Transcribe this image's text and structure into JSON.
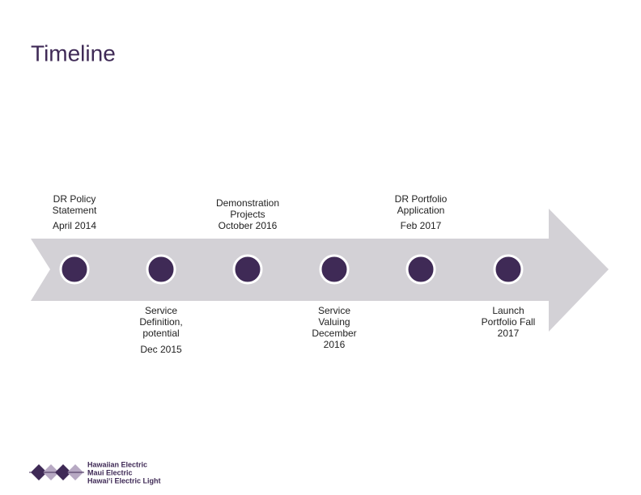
{
  "title": "Timeline",
  "milestones": [
    {
      "lines": [
        "DR Policy",
        "Statement"
      ],
      "date": "April 2014"
    },
    {
      "lines": [
        "Service",
        "Definition,",
        "potential"
      ],
      "date": "Dec 2015"
    },
    {
      "lines": [
        "Demonstration",
        "Projects",
        "October 2016"
      ]
    },
    {
      "lines": [
        "Service",
        "Valuing",
        "December",
        "2016"
      ]
    },
    {
      "lines": [
        "DR Portfolio",
        "Application"
      ],
      "date": "Feb 2017"
    },
    {
      "lines": [
        "Launch",
        "Portfolio Fall",
        "2017"
      ]
    }
  ],
  "logo": {
    "lines": [
      "Hawaiian Electric",
      "Maui Electric",
      "Hawai‘i Electric Light"
    ]
  }
}
